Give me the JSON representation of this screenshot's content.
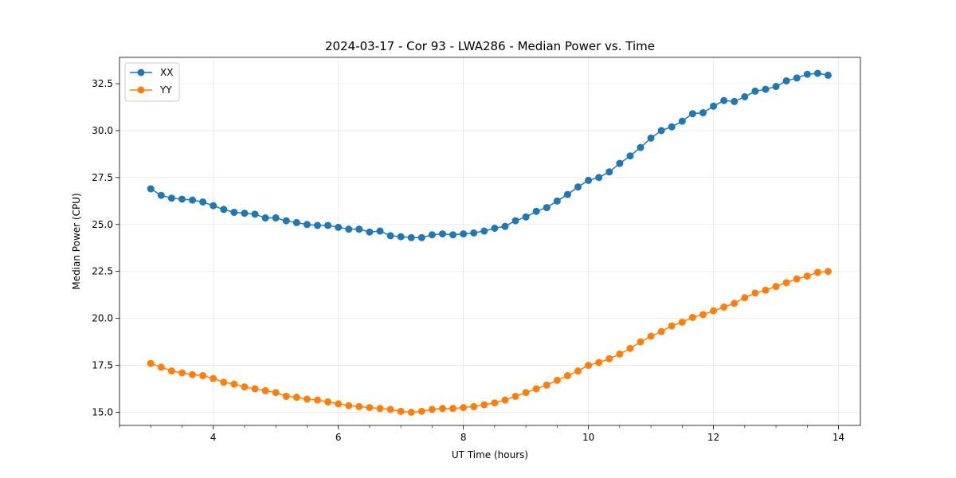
{
  "chart_data": {
    "type": "line",
    "title": "2024-03-17 - Cor 93 - LWA286 - Median Power vs. Time",
    "xlabel": "UT Time (hours)",
    "ylabel": "Median Power (CPU)",
    "xlim": [
      2.5,
      14.35
    ],
    "ylim": [
      14.3,
      33.9
    ],
    "xticks": [
      4,
      6,
      8,
      10,
      12,
      14
    ],
    "xtick_labels": [
      "4",
      "6",
      "8",
      "10",
      "12",
      "14"
    ],
    "yticks": [
      15.0,
      17.5,
      20.0,
      22.5,
      25.0,
      27.5,
      30.0,
      32.5
    ],
    "ytick_labels": [
      "15.0",
      "17.5",
      "20.0",
      "22.5",
      "25.0",
      "27.5",
      "30.0",
      "32.5"
    ],
    "grid": true,
    "legend_position": "top-left",
    "x": [
      3.0,
      3.1667,
      3.3333,
      3.5,
      3.6667,
      3.8333,
      4.0,
      4.1667,
      4.3333,
      4.5,
      4.6667,
      4.8333,
      5.0,
      5.1667,
      5.3333,
      5.5,
      5.6667,
      5.8333,
      6.0,
      6.1667,
      6.3333,
      6.5,
      6.6667,
      6.8333,
      7.0,
      7.1667,
      7.3333,
      7.5,
      7.6667,
      7.8333,
      8.0,
      8.1667,
      8.3333,
      8.5,
      8.6667,
      8.8333,
      9.0,
      9.1667,
      9.3333,
      9.5,
      9.6667,
      9.8333,
      10.0,
      10.1667,
      10.3333,
      10.5,
      10.6667,
      10.8333,
      11.0,
      11.1667,
      11.3333,
      11.5,
      11.6667,
      11.8333,
      12.0,
      12.1667,
      12.3333,
      12.5,
      12.6667,
      12.8333,
      13.0,
      13.1667,
      13.3333,
      13.5,
      13.6667,
      13.8333
    ],
    "series": [
      {
        "name": "XX",
        "color": "#1f77b4",
        "values": [
          26.9,
          26.55,
          26.4,
          26.35,
          26.3,
          26.2,
          26.0,
          25.8,
          25.65,
          25.6,
          25.55,
          25.35,
          25.35,
          25.2,
          25.1,
          25.0,
          24.95,
          24.95,
          24.85,
          24.75,
          24.75,
          24.6,
          24.65,
          24.4,
          24.35,
          24.3,
          24.3,
          24.45,
          24.5,
          24.45,
          24.5,
          24.55,
          24.65,
          24.8,
          24.9,
          25.2,
          25.4,
          25.7,
          25.9,
          26.25,
          26.6,
          27.0,
          27.35,
          27.5,
          27.8,
          28.25,
          28.65,
          29.1,
          29.6,
          30.0,
          30.2,
          30.5,
          30.9,
          30.95,
          31.3,
          31.6,
          31.55,
          31.8,
          32.1,
          32.2,
          32.35,
          32.65,
          32.8,
          33.0,
          33.05,
          32.95
        ]
      },
      {
        "name": "YY",
        "color": "#ff7f0e",
        "values": [
          17.6,
          17.4,
          17.2,
          17.1,
          17.0,
          16.95,
          16.8,
          16.6,
          16.5,
          16.35,
          16.25,
          16.15,
          16.05,
          15.85,
          15.8,
          15.7,
          15.65,
          15.55,
          15.45,
          15.35,
          15.3,
          15.25,
          15.2,
          15.15,
          15.05,
          15.0,
          15.05,
          15.15,
          15.2,
          15.2,
          15.25,
          15.3,
          15.4,
          15.5,
          15.65,
          15.85,
          16.05,
          16.25,
          16.45,
          16.7,
          16.95,
          17.2,
          17.5,
          17.65,
          17.85,
          18.1,
          18.4,
          18.75,
          19.05,
          19.3,
          19.6,
          19.8,
          20.05,
          20.2,
          20.4,
          20.6,
          20.8,
          21.1,
          21.35,
          21.5,
          21.7,
          21.9,
          22.1,
          22.25,
          22.45,
          22.5
        ]
      }
    ]
  }
}
